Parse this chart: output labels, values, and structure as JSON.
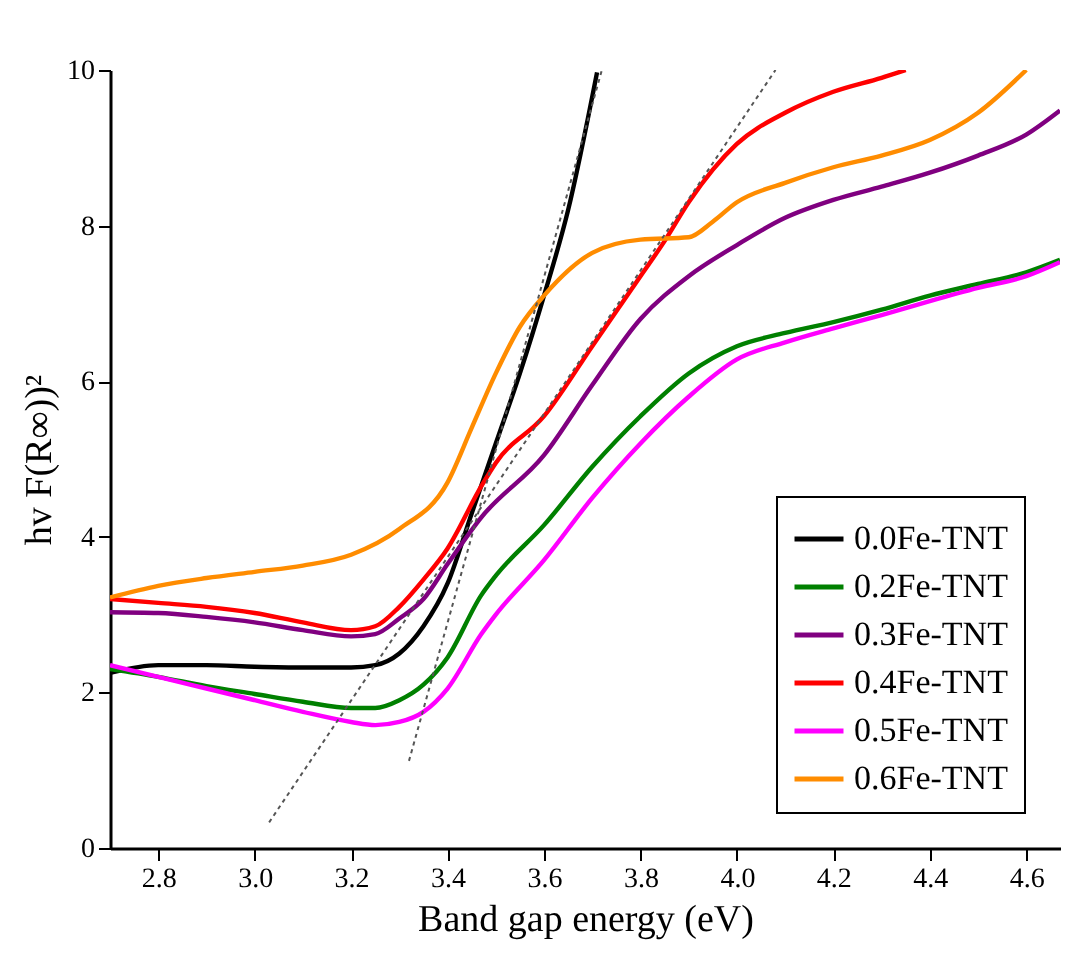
{
  "chart_data": {
    "type": "line",
    "xlabel": "Band gap energy (eV)",
    "ylabel": "hv F(R∞))²",
    "xlim": [
      2.7,
      4.67
    ],
    "ylim": [
      0,
      10
    ],
    "xticks": [
      2.8,
      {
        "value": 3,
        "label": "3.0"
      },
      3.2,
      3.4,
      3.6,
      3.8,
      {
        "value": 4,
        "label": "4.0"
      },
      4.2,
      4.4,
      4.6
    ],
    "yticks": [
      0,
      2,
      4,
      6,
      8,
      10
    ],
    "grid": false,
    "legend": "bottom right",
    "marker": "none",
    "line_style": "solid",
    "series": [
      {
        "name": "0.0Fe-TNT",
        "color": "#000000",
        "x": [
          2.7,
          2.8,
          2.9,
          3.0,
          3.1,
          3.2,
          3.25,
          3.3,
          3.35,
          3.4,
          3.45,
          3.5,
          3.55,
          3.6,
          3.65,
          3.71
        ],
        "values": [
          2.25,
          2.35,
          2.35,
          2.33,
          2.32,
          2.32,
          2.35,
          2.5,
          2.85,
          3.4,
          4.3,
          5.2,
          6.1,
          7.1,
          8.2,
          9.97
        ]
      },
      {
        "name": "0.2Fe-TNT",
        "color": "#008000",
        "x": [
          2.7,
          2.8,
          2.9,
          3.0,
          3.1,
          3.2,
          3.25,
          3.3,
          3.35,
          3.4,
          3.47,
          3.5,
          3.6,
          3.7,
          3.8,
          3.9,
          4.0,
          4.1,
          4.2,
          4.3,
          4.4,
          4.5,
          4.6,
          4.67
        ],
        "values": [
          2.3,
          2.2,
          2.08,
          1.98,
          1.88,
          1.8,
          1.8,
          1.9,
          2.1,
          2.45,
          3.25,
          3.5,
          4.15,
          4.9,
          5.55,
          6.1,
          6.45,
          6.62,
          6.76,
          6.92,
          7.1,
          7.25,
          7.4,
          7.56
        ]
      },
      {
        "name": "0.3Fe-TNT",
        "color": "#800080",
        "x": [
          2.7,
          2.8,
          2.9,
          3.0,
          3.1,
          3.2,
          3.25,
          3.3,
          3.35,
          3.4,
          3.47,
          3.6,
          3.7,
          3.8,
          3.9,
          4.0,
          4.1,
          4.2,
          4.3,
          4.4,
          4.5,
          4.6,
          4.67
        ],
        "values": [
          3.03,
          3.02,
          2.97,
          2.9,
          2.8,
          2.72,
          2.75,
          2.95,
          3.2,
          3.65,
          4.25,
          5.05,
          5.95,
          6.8,
          7.35,
          7.75,
          8.1,
          8.33,
          8.5,
          8.68,
          8.9,
          9.17,
          9.48
        ]
      },
      {
        "name": "0.4Fe-TNT",
        "color": "#ff0000",
        "x": [
          2.7,
          2.8,
          2.9,
          3.0,
          3.1,
          3.2,
          3.25,
          3.3,
          3.35,
          3.4,
          3.47,
          3.5,
          3.6,
          3.7,
          3.8,
          3.85,
          3.9,
          4.0,
          4.1,
          4.2,
          4.3,
          4.35
        ],
        "values": [
          3.2,
          3.15,
          3.1,
          3.02,
          2.9,
          2.8,
          2.85,
          3.1,
          3.45,
          3.85,
          4.65,
          4.95,
          5.55,
          6.45,
          7.35,
          7.8,
          8.3,
          9.05,
          9.45,
          9.72,
          9.9,
          10
        ]
      },
      {
        "name": "0.5Fe-TNT",
        "color": "#ff00ff",
        "x": [
          2.7,
          2.8,
          2.9,
          3.0,
          3.1,
          3.2,
          3.25,
          3.3,
          3.35,
          3.4,
          3.47,
          3.5,
          3.6,
          3.7,
          3.8,
          3.9,
          4.0,
          4.1,
          4.2,
          4.3,
          4.4,
          4.5,
          4.6,
          4.67
        ],
        "values": [
          2.35,
          2.2,
          2.05,
          1.9,
          1.75,
          1.62,
          1.58,
          1.62,
          1.75,
          2.05,
          2.75,
          3.0,
          3.7,
          4.5,
          5.2,
          5.8,
          6.28,
          6.5,
          6.68,
          6.85,
          7.03,
          7.2,
          7.35,
          7.53
        ]
      },
      {
        "name": "0.6Fe-TNT",
        "color": "#ff8c00",
        "x": [
          2.7,
          2.8,
          2.9,
          3.0,
          3.1,
          3.2,
          3.3,
          3.4,
          3.45,
          3.5,
          3.55,
          3.6,
          3.7,
          3.8,
          3.9,
          3.95,
          4.0,
          4.1,
          4.2,
          4.3,
          4.4,
          4.5,
          4.6
        ],
        "values": [
          3.22,
          3.37,
          3.47,
          3.55,
          3.63,
          3.77,
          4.1,
          4.7,
          5.4,
          6.1,
          6.7,
          7.1,
          7.65,
          7.82,
          7.85,
          8.05,
          8.3,
          8.55,
          8.75,
          8.9,
          9.1,
          9.45,
          10
        ]
      },
      {
        "type": "line",
        "line_style": "dotted",
        "color": "#555555",
        "x": [
          3.03,
          4.08
        ],
        "values": [
          0.33,
          10
        ]
      },
      {
        "type": "line",
        "line_style": "dotted",
        "color": "#555555",
        "x": [
          3.32,
          3.72
        ],
        "values": [
          1.12,
          10
        ]
      }
    ]
  }
}
